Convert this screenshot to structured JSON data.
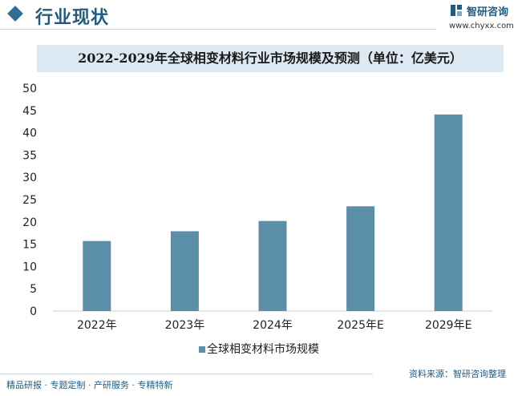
{
  "header": {
    "section_title": "行业现状",
    "brand_name": "智研咨询",
    "brand_url": "www.chyxx.com"
  },
  "colors": {
    "accent": "#1f5b82",
    "bar": "#5b8fa8",
    "title_band": "#dde9f2"
  },
  "chart_data": {
    "type": "bar",
    "title": "2022-2029年全球相变材料行业市场规模及预测（单位：亿美元）",
    "categories": [
      "2022年",
      "2023年",
      "2024年",
      "2025年E",
      "2029年E"
    ],
    "series": [
      {
        "name": "全球相变材料市场规模",
        "values": [
          15.7,
          17.9,
          20.2,
          23.5,
          44.1
        ]
      }
    ],
    "ylim": [
      0,
      50
    ],
    "yticks": [
      0,
      5,
      10,
      15,
      20,
      25,
      30,
      35,
      40,
      45,
      50
    ],
    "grid": false,
    "legend": "bottom-center"
  },
  "footer": {
    "left": "精品研报 · 专题定制 · 产研服务 · 专精特新",
    "right": "资料来源：智研咨询整理"
  }
}
